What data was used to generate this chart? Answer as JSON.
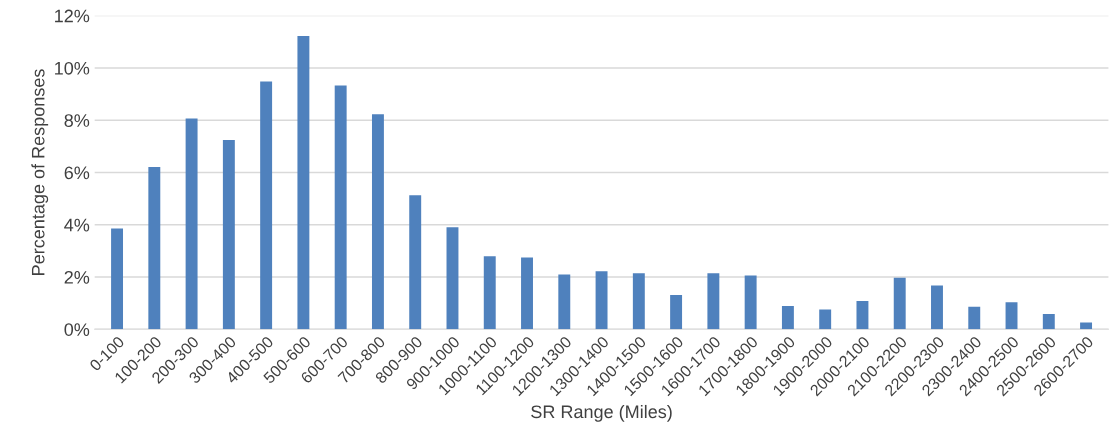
{
  "chart_data": {
    "type": "bar",
    "xlabel": "SR Range (Miles)",
    "ylabel": "Percentage of Responses",
    "categories": [
      "0-100",
      "100-200",
      "200-300",
      "300-400",
      "400-500",
      "500-600",
      "600-700",
      "700-800",
      "800-900",
      "900-1000",
      "1000-1100",
      "1100-1200",
      "1200-1300",
      "1300-1400",
      "1400-1500",
      "1500-1600",
      "1600-1700",
      "1700-1800",
      "1800-1900",
      "1900-2000",
      "2000-2100",
      "2100-2200",
      "2200-2300",
      "2300-2400",
      "2400-2500",
      "2500-2600",
      "2600-2700"
    ],
    "values": [
      3.86,
      6.21,
      8.07,
      7.24,
      9.48,
      11.22,
      9.33,
      8.23,
      5.13,
      3.9,
      2.79,
      2.75,
      2.1,
      2.22,
      2.14,
      1.31,
      2.14,
      2.06,
      0.89,
      0.76,
      1.08,
      1.97,
      1.68,
      0.86,
      1.03,
      0.58,
      0.26
    ],
    "color": "#4f81bd",
    "ylim": [
      0,
      12
    ],
    "yticks": [
      {
        "value": 0,
        "label": "0%"
      },
      {
        "value": 2,
        "label": "2%"
      },
      {
        "value": 4,
        "label": "4%"
      },
      {
        "value": 6,
        "label": "6%"
      },
      {
        "value": 8,
        "label": "8%"
      },
      {
        "value": 10,
        "label": "10%"
      },
      {
        "value": 12,
        "label": "12%"
      }
    ],
    "grid": "y"
  }
}
